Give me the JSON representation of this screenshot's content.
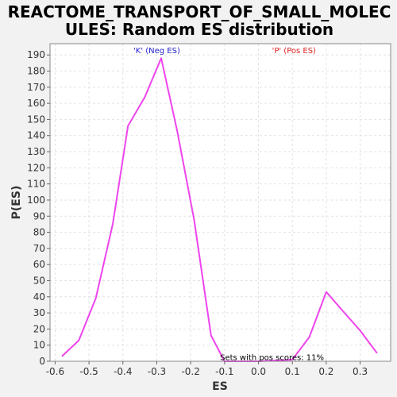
{
  "chart_data": {
    "type": "line",
    "title_line1": "REACTOME_TRANSPORT_OF_SMALL_MOLEC",
    "title_line2": "ULES: Random ES distribution",
    "xlabel": "ES",
    "ylabel": "P(ES)",
    "xlim": [
      -0.615,
      0.39
    ],
    "ylim": [
      0,
      197
    ],
    "x_ticks": [
      -0.6,
      -0.5,
      -0.4,
      -0.3,
      -0.2,
      -0.1,
      0.0,
      0.1,
      0.2,
      0.3
    ],
    "x_tick_labels": [
      "-0.6",
      "-0.5",
      "-0.4",
      "-0.3",
      "-0.2",
      "-0.1",
      "0.0",
      "0.1",
      "0.2",
      "0.3"
    ],
    "y_ticks": [
      0,
      10,
      20,
      30,
      40,
      50,
      60,
      70,
      80,
      90,
      100,
      110,
      120,
      130,
      140,
      150,
      160,
      170,
      180,
      190
    ],
    "grid": true,
    "annotations": {
      "neg": {
        "text": "'K' (Neg ES)",
        "color": "#2222cc",
        "x": -0.3,
        "y": 191
      },
      "pos": {
        "text": "'P' (Pos ES)",
        "color": "#dd2222",
        "x": 0.04,
        "y": 191
      },
      "pos_scores": {
        "text": "Sets with pos scores: 11%",
        "color": "#000000",
        "x": 0.04,
        "y": 0.8
      }
    },
    "series": [
      {
        "color": "#ee44ee",
        "x": [
          -0.58,
          -0.53,
          -0.48,
          -0.43,
          -0.385,
          -0.335,
          -0.287,
          -0.24,
          -0.19,
          -0.14,
          -0.1,
          0.0,
          0.1,
          0.15,
          0.2,
          0.25,
          0.3,
          0.35
        ],
        "y": [
          3,
          13,
          39,
          85,
          146,
          164,
          188,
          143,
          88,
          16,
          0,
          0,
          1,
          15,
          43,
          31,
          19,
          5
        ]
      }
    ]
  }
}
